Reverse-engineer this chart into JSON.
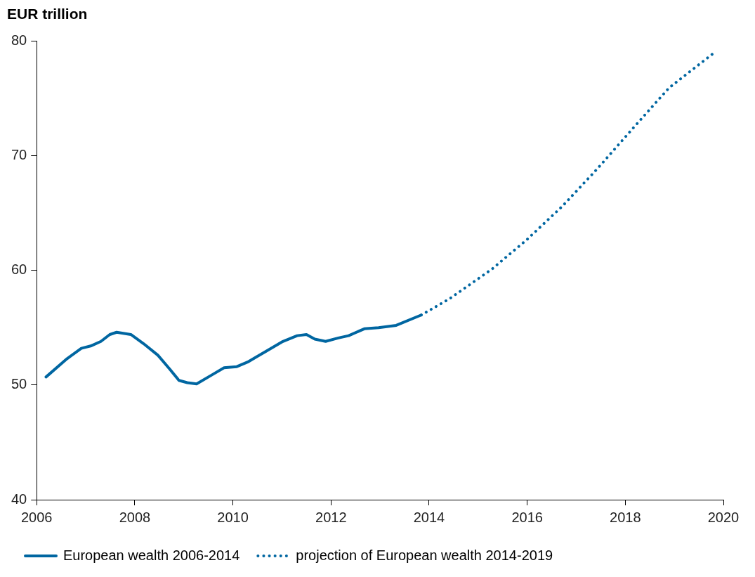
{
  "chart_data": {
    "type": "line",
    "ylabel": "EUR trillion",
    "xlim": [
      2006,
      2020
    ],
    "xticks": [
      2006,
      2008,
      2010,
      2012,
      2014,
      2016,
      2018,
      2020
    ],
    "ylim": [
      40,
      80
    ],
    "yticks": [
      40,
      50,
      60,
      70,
      80
    ],
    "grid": false,
    "legend": "bottom",
    "marker": "none",
    "series": [
      {
        "name": "European wealth 2006-2014",
        "color": "#0066a1",
        "line_style": "solid",
        "x": [
          2006.19,
          2006.62,
          2006.91,
          2007.1,
          2007.31,
          2007.49,
          2007.63,
          2007.92,
          2008.18,
          2008.47,
          2008.71,
          2008.9,
          2009.07,
          2009.26,
          2009.58,
          2009.82,
          2010.08,
          2010.3,
          2010.66,
          2011.02,
          2011.31,
          2011.5,
          2011.67,
          2011.89,
          2012.15,
          2012.36,
          2012.68,
          2012.97,
          2013.33,
          2013.84
        ],
        "values": [
          50.7,
          52.3,
          53.2,
          53.4,
          53.8,
          54.4,
          54.6,
          54.4,
          53.6,
          52.6,
          51.4,
          50.4,
          50.2,
          50.1,
          50.9,
          51.5,
          51.6,
          52.0,
          52.9,
          53.8,
          54.3,
          54.4,
          54.0,
          53.8,
          54.1,
          54.3,
          54.9,
          55.0,
          55.2,
          56.1
        ]
      },
      {
        "name": "projection of European wealth 2014-2019",
        "color": "#0066a1",
        "line_style": "dotted",
        "x": [
          2013.84,
          2014.41,
          2015.28,
          2016.0,
          2016.72,
          2017.44,
          2018.16,
          2018.89,
          2019.85
        ],
        "values": [
          56.1,
          57.5,
          60.1,
          62.7,
          65.6,
          68.9,
          72.4,
          75.9,
          79.1
        ]
      }
    ]
  }
}
